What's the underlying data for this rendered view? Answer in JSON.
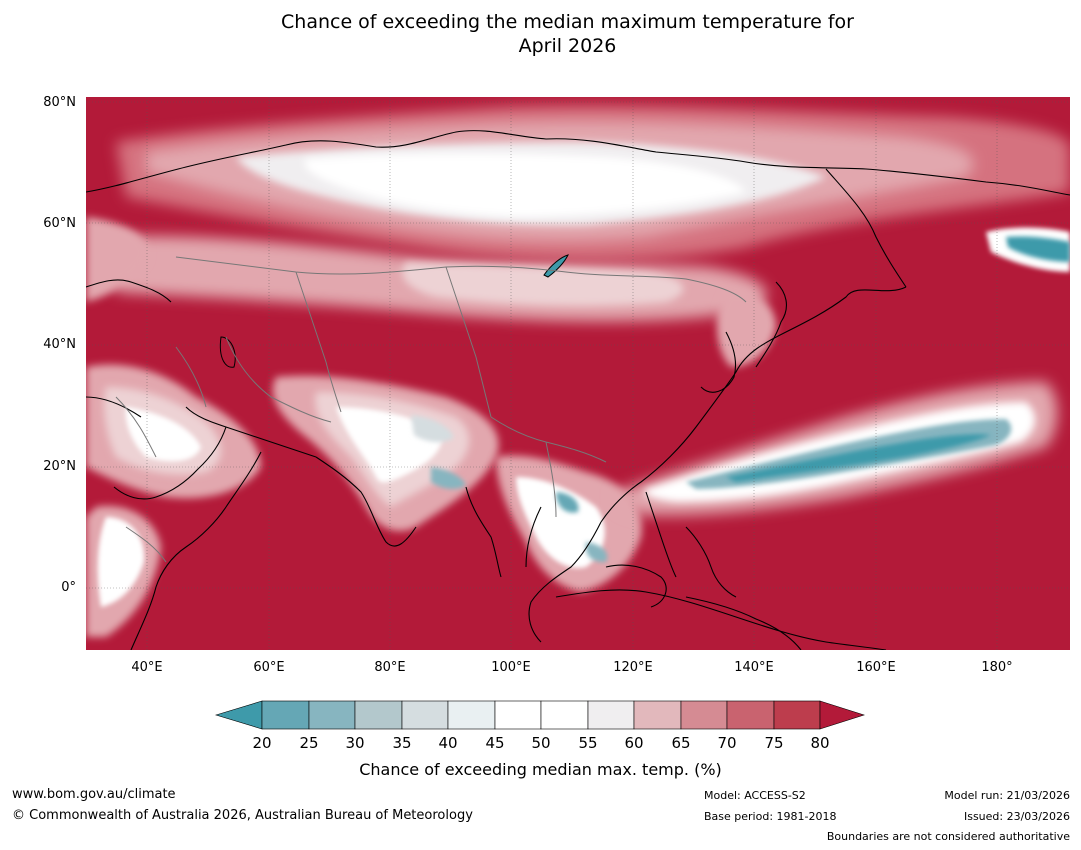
{
  "title": {
    "line1": "Chance of exceeding the median maximum temperature for",
    "line2": "April 2026"
  },
  "map": {
    "colors": {
      "ocean_hot": "#b31a39",
      "c75": "#c64353",
      "c70": "#d5727f",
      "c65": "#e2a7ae",
      "c60": "#edd2d4",
      "c55": "#f0eef0",
      "c50": "#ffffff",
      "c45": "#e9f0f2",
      "c40": "#d5dde0",
      "c35": "#b3c8cc",
      "c30": "#87b5c0",
      "c25": "#65a7b5",
      "c20": "#3e9aaa"
    },
    "lat_labels": [
      "80°N",
      "60°N",
      "40°N",
      "20°N",
      "0°"
    ],
    "lon_labels": [
      "40°E",
      "60°E",
      "80°E",
      "100°E",
      "120°E",
      "140°E",
      "160°E",
      "180°"
    ]
  },
  "colorbar": {
    "ticks": [
      "20",
      "25",
      "30",
      "35",
      "40",
      "45",
      "50",
      "55",
      "60",
      "65",
      "70",
      "75",
      "80"
    ],
    "label": "Chance of exceeding median max. temp. (%)"
  },
  "footer": {
    "url": "www.bom.gov.au/climate",
    "copyright": "© Commonwealth of Australia 2026, Australian Bureau of Meteorology",
    "model": "Model: ACCESS-S2",
    "base_period": "Base period: 1981-2018",
    "model_run": "Model run: 21/03/2026",
    "issued": "Issued: 23/03/2026",
    "disclaimer": "Boundaries are not considered authoritative"
  }
}
